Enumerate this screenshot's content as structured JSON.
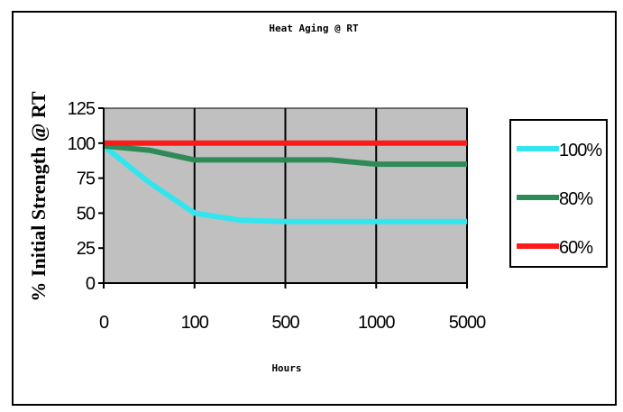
{
  "chart_data": {
    "type": "line",
    "title": "Heat Aging @ RT",
    "xlabel": "Hours",
    "ylabel": "% Initial Strength @ RT",
    "categories": [
      "0",
      "100",
      "500",
      "1000",
      "5000"
    ],
    "ylim": [
      0,
      125
    ],
    "yticks": [
      "0",
      "25",
      "50",
      "75",
      "100",
      "125"
    ],
    "grid": true,
    "legend_position": "right",
    "series": [
      {
        "name": "100%",
        "color": "#33e6ee",
        "points": [
          [
            0,
            98
          ],
          [
            0.5,
            72
          ],
          [
            1,
            50
          ],
          [
            1.5,
            45
          ],
          [
            2,
            44
          ],
          [
            3,
            44
          ],
          [
            4,
            44
          ]
        ]
      },
      {
        "name": "80%",
        "color": "#2e8b57",
        "points": [
          [
            0,
            98
          ],
          [
            0.5,
            95
          ],
          [
            1,
            88
          ],
          [
            2,
            88
          ],
          [
            2.5,
            88
          ],
          [
            3,
            85
          ],
          [
            4,
            85
          ]
        ]
      },
      {
        "name": "60%",
        "color": "#ff1a1a",
        "points": [
          [
            0,
            100
          ],
          [
            1,
            100
          ],
          [
            2,
            100
          ],
          [
            3,
            100
          ],
          [
            4,
            100
          ]
        ]
      }
    ]
  }
}
